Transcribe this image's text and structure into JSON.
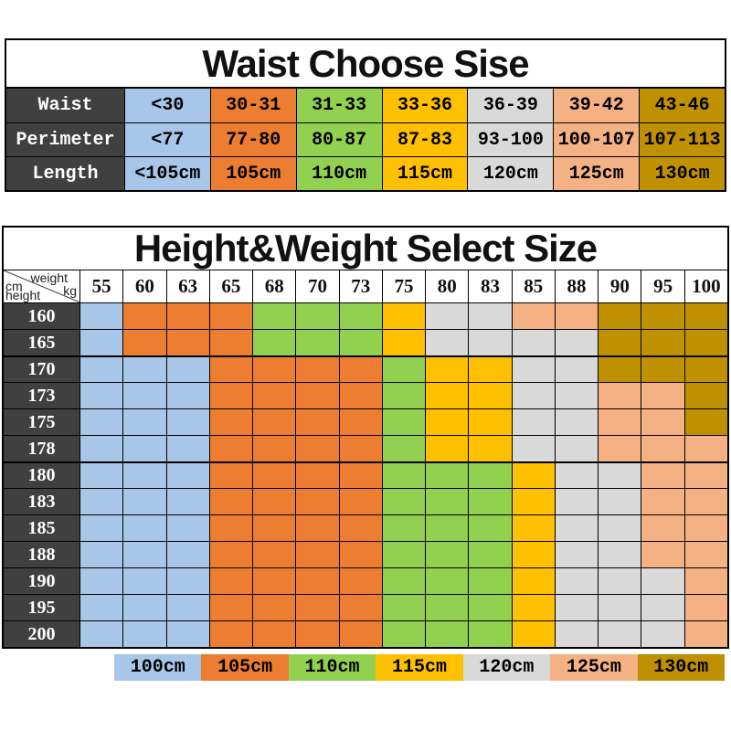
{
  "colors": {
    "blue": "#A8C6E8",
    "orange": "#ED7D31",
    "green": "#92D050",
    "yellow": "#FFC000",
    "gray": "#D9D9D9",
    "peach": "#F4B183",
    "gold": "#BF9000",
    "header_dark": "#404040"
  },
  "chart_data": [
    {
      "type": "table",
      "title": "Waist Choose Sise",
      "row_labels": [
        "Waist",
        "Perimeter",
        "Length"
      ],
      "rows": [
        [
          "<30",
          "30-31",
          "31-33",
          "33-36",
          "36-39",
          "39-42",
          "43-46"
        ],
        [
          "<77",
          "77-80",
          "80-87",
          "87-83",
          "93-100",
          "100-107",
          "107-113"
        ],
        [
          "<105cm",
          "105cm",
          "110cm",
          "115cm",
          "120cm",
          "125cm",
          "130cm"
        ]
      ],
      "column_colors": [
        "blue",
        "orange",
        "green",
        "yellow",
        "gray",
        "peach",
        "gold"
      ]
    },
    {
      "type": "heatmap",
      "title": "Height&Weight Select Size",
      "corner_labels": {
        "cm": "cm",
        "height": "height",
        "weight": "weight",
        "kg": "kg"
      },
      "x": [
        "55",
        "60",
        "63",
        "65",
        "68",
        "70",
        "73",
        "75",
        "80",
        "83",
        "85",
        "88",
        "90",
        "95",
        "100"
      ],
      "y": [
        "160",
        "165",
        "170",
        "173",
        "175",
        "178",
        "180",
        "183",
        "185",
        "188",
        "190",
        "195",
        "200"
      ],
      "values": [
        [
          "100cm",
          "105cm",
          "105cm",
          "105cm",
          "110cm",
          "110cm",
          "110cm",
          "115cm",
          "120cm",
          "120cm",
          "125cm",
          "125cm",
          "130cm",
          "130cm",
          "130cm"
        ],
        [
          "100cm",
          "105cm",
          "105cm",
          "105cm",
          "110cm",
          "110cm",
          "110cm",
          "115cm",
          "120cm",
          "120cm",
          "120cm",
          "120cm",
          "130cm",
          "130cm",
          "130cm"
        ],
        [
          "100cm",
          "100cm",
          "100cm",
          "105cm",
          "105cm",
          "105cm",
          "105cm",
          "110cm",
          "115cm",
          "115cm",
          "120cm",
          "120cm",
          "130cm",
          "130cm",
          "130cm"
        ],
        [
          "100cm",
          "100cm",
          "100cm",
          "105cm",
          "105cm",
          "105cm",
          "105cm",
          "110cm",
          "115cm",
          "115cm",
          "120cm",
          "120cm",
          "125cm",
          "125cm",
          "130cm"
        ],
        [
          "100cm",
          "100cm",
          "100cm",
          "105cm",
          "105cm",
          "105cm",
          "105cm",
          "110cm",
          "115cm",
          "115cm",
          "120cm",
          "120cm",
          "125cm",
          "125cm",
          "130cm"
        ],
        [
          "100cm",
          "100cm",
          "100cm",
          "105cm",
          "105cm",
          "105cm",
          "105cm",
          "110cm",
          "115cm",
          "115cm",
          "120cm",
          "120cm",
          "125cm",
          "125cm",
          "125cm"
        ],
        [
          "100cm",
          "100cm",
          "100cm",
          "105cm",
          "105cm",
          "105cm",
          "105cm",
          "110cm",
          "110cm",
          "110cm",
          "115cm",
          "120cm",
          "120cm",
          "125cm",
          "125cm"
        ],
        [
          "100cm",
          "100cm",
          "100cm",
          "105cm",
          "105cm",
          "105cm",
          "105cm",
          "110cm",
          "110cm",
          "110cm",
          "115cm",
          "120cm",
          "120cm",
          "125cm",
          "125cm"
        ],
        [
          "100cm",
          "100cm",
          "100cm",
          "105cm",
          "105cm",
          "105cm",
          "105cm",
          "110cm",
          "110cm",
          "110cm",
          "115cm",
          "120cm",
          "120cm",
          "125cm",
          "125cm"
        ],
        [
          "100cm",
          "100cm",
          "100cm",
          "105cm",
          "105cm",
          "105cm",
          "105cm",
          "110cm",
          "110cm",
          "110cm",
          "115cm",
          "120cm",
          "120cm",
          "125cm",
          "125cm"
        ],
        [
          "100cm",
          "100cm",
          "100cm",
          "105cm",
          "105cm",
          "105cm",
          "105cm",
          "110cm",
          "110cm",
          "110cm",
          "115cm",
          "120cm",
          "120cm",
          "120cm",
          "125cm"
        ],
        [
          "100cm",
          "100cm",
          "100cm",
          "105cm",
          "105cm",
          "105cm",
          "105cm",
          "110cm",
          "110cm",
          "110cm",
          "115cm",
          "120cm",
          "120cm",
          "120cm",
          "125cm"
        ],
        [
          "100cm",
          "100cm",
          "100cm",
          "105cm",
          "105cm",
          "105cm",
          "105cm",
          "110cm",
          "110cm",
          "110cm",
          "115cm",
          "120cm",
          "120cm",
          "120cm",
          "125cm"
        ]
      ],
      "legend": [
        {
          "label": "100cm",
          "color_key": "blue"
        },
        {
          "label": "105cm",
          "color_key": "orange"
        },
        {
          "label": "110cm",
          "color_key": "green"
        },
        {
          "label": "115cm",
          "color_key": "yellow"
        },
        {
          "label": "120cm",
          "color_key": "gray"
        },
        {
          "label": "125cm",
          "color_key": "peach"
        },
        {
          "label": "130cm",
          "color_key": "gold"
        }
      ],
      "legend_position": "bottom"
    }
  ]
}
